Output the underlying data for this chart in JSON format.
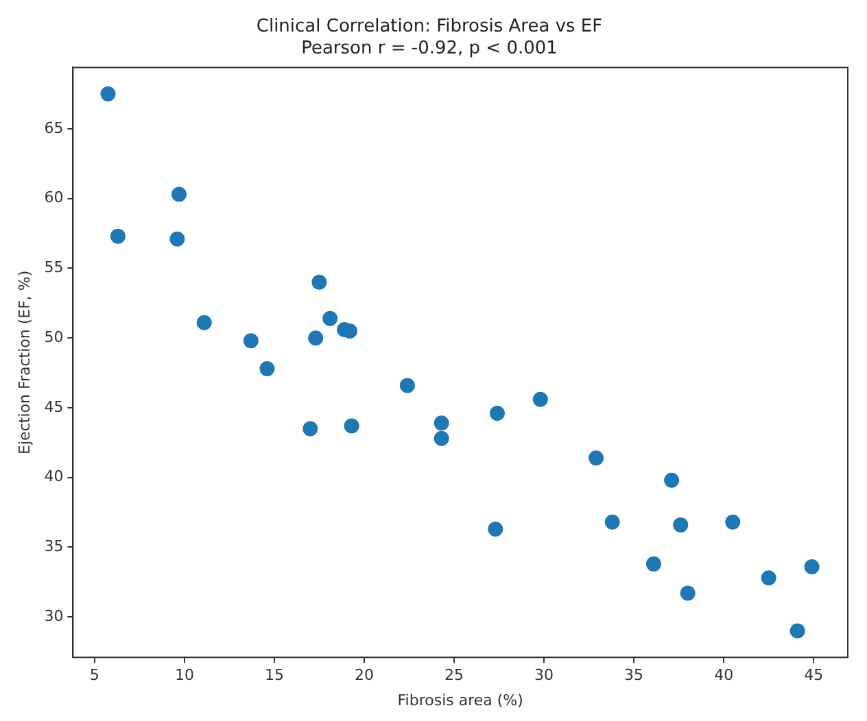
{
  "chart_data": {
    "type": "scatter",
    "title": "Clinical Correlation: Fibrosis Area vs EF",
    "subtitle": "Pearson r = -0.92, p < 0.001",
    "xlabel": "Fibrosis area (%)",
    "ylabel": "Ejection Fraction (EF, %)",
    "x": [
      5.75,
      9.7,
      6.3,
      9.6,
      17.5,
      11.1,
      18.1,
      18.9,
      19.2,
      13.7,
      17.3,
      14.6,
      22.4,
      17.0,
      19.3,
      24.3,
      24.3,
      27.4,
      29.8,
      32.9,
      37.1,
      27.3,
      33.8,
      37.6,
      40.5,
      36.1,
      42.5,
      44.9,
      38.0,
      44.1
    ],
    "series": [
      {
        "color": "#1f77b4",
        "values": [
          67.5,
          60.3,
          57.3,
          57.1,
          54.0,
          51.1,
          51.4,
          50.6,
          50.5,
          49.8,
          50.0,
          47.8,
          46.6,
          43.5,
          43.7,
          43.9,
          42.8,
          44.6,
          45.6,
          41.4,
          39.8,
          36.3,
          36.8,
          36.6,
          36.8,
          33.8,
          32.8,
          33.6,
          31.7,
          29.0
        ]
      }
    ],
    "xlim": [
      3.8,
      46.9
    ],
    "ylim": [
      27.1,
      69.4
    ],
    "xticks": [
      5,
      10,
      15,
      20,
      25,
      30,
      35,
      40,
      45
    ],
    "yticks": [
      30,
      35,
      40,
      45,
      50,
      55,
      60,
      65
    ],
    "grid": false,
    "legend": false,
    "marker": "circle"
  }
}
